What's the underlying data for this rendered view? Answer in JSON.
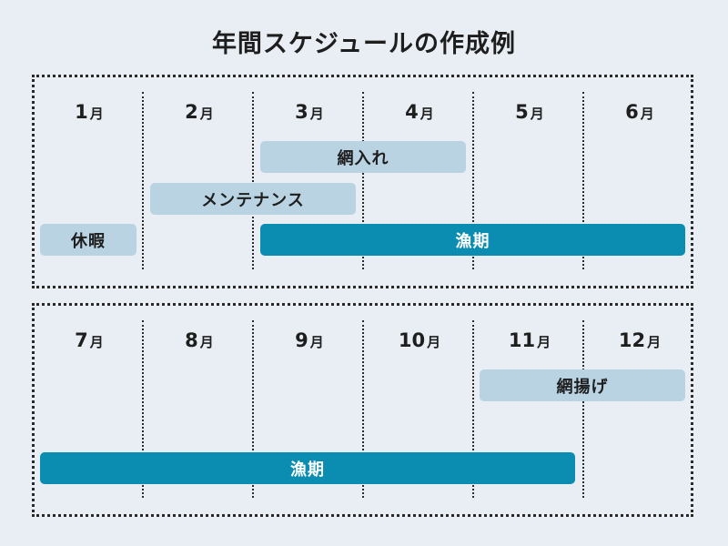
{
  "title": "年間スケジュールの作成例",
  "month_unit": "月",
  "panels": [
    {
      "months": [
        "1",
        "2",
        "3",
        "4",
        "5",
        "6"
      ],
      "bars": [
        {
          "label": "網入れ",
          "start_month": 3,
          "end_month": 4,
          "style": "light"
        },
        {
          "label": "メンテナンス",
          "start_month": 2,
          "end_month": 3,
          "style": "light"
        },
        {
          "label": "休暇",
          "start_month": 1,
          "end_month": 1,
          "style": "light"
        },
        {
          "label": "漁期",
          "start_month": 3,
          "end_month": 6,
          "style": "dark"
        }
      ]
    },
    {
      "months": [
        "7",
        "8",
        "9",
        "10",
        "11",
        "12"
      ],
      "bars": [
        {
          "label": "網揚げ",
          "start_month": 11,
          "end_month": 12,
          "style": "light"
        },
        {
          "label": "漁期",
          "start_month": 7,
          "end_month": 11,
          "style": "dark"
        }
      ]
    }
  ],
  "colors": {
    "background": "#e8eef3",
    "bar_light": "#b9d3e2",
    "bar_dark": "#0b8cb1"
  }
}
